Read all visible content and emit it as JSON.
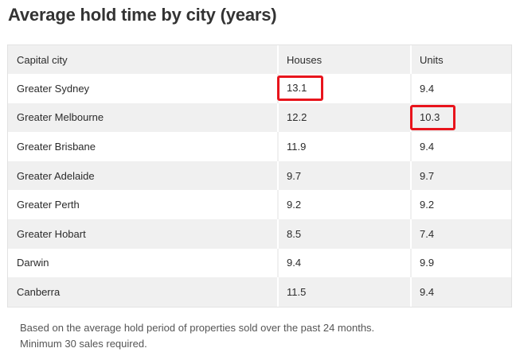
{
  "title": "Average hold time by city (years)",
  "table": {
    "headers": [
      "Capital city",
      "Houses",
      "Units"
    ],
    "rows": [
      {
        "city": "Greater Sydney",
        "houses": "13.1",
        "units": "9.4"
      },
      {
        "city": "Greater Melbourne",
        "houses": "12.2",
        "units": "10.3"
      },
      {
        "city": "Greater Brisbane",
        "houses": "11.9",
        "units": "9.4"
      },
      {
        "city": "Greater Adelaide",
        "houses": "9.7",
        "units": "9.7"
      },
      {
        "city": "Greater Perth",
        "houses": "9.2",
        "units": "9.2"
      },
      {
        "city": "Greater Hobart",
        "houses": "8.5",
        "units": "7.4"
      },
      {
        "city": "Darwin",
        "houses": "9.4",
        "units": "9.9"
      },
      {
        "city": "Canberra",
        "houses": "11.5",
        "units": "9.4"
      }
    ]
  },
  "footnote": {
    "line1": "Based on the average hold period of properties sold over the past 24 months.",
    "line2": "Minimum 30 sales required."
  },
  "colors": {
    "highlight": "#e8141c",
    "row_shade": "#f0f0f0"
  }
}
